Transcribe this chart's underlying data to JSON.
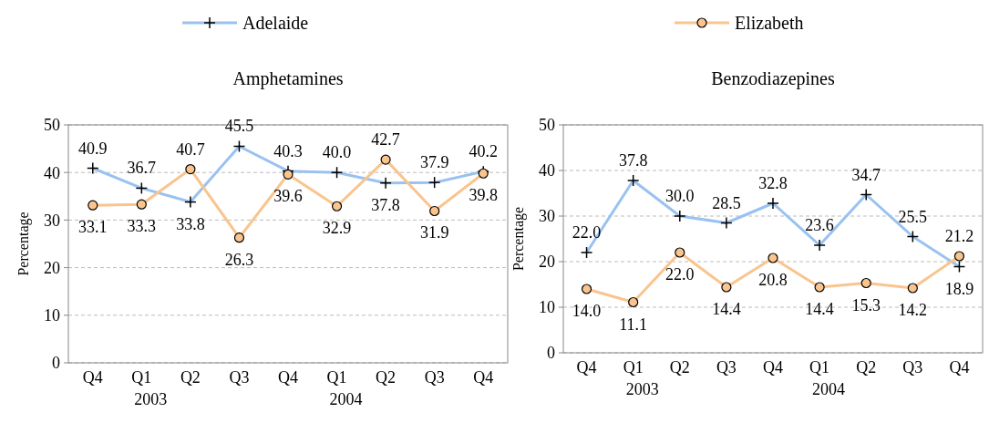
{
  "chart_data": [
    {
      "type": "line",
      "title": "Amphetamines",
      "ylabel": "Percentage",
      "categories": [
        "Q4",
        "Q1\n2003",
        "Q2",
        "Q3",
        "Q4",
        "Q1\n2004",
        "Q2",
        "Q3",
        "Q4"
      ],
      "series": [
        {
          "name": "Adelaide",
          "color": "#99c2f0",
          "marker": "cross",
          "values": [
            40.9,
            36.7,
            33.8,
            45.5,
            40.3,
            40.0,
            37.8,
            37.9,
            40.2
          ],
          "value_labels": [
            "40.9",
            "36.7",
            "33.8",
            "45.5",
            "40.3",
            "40.0",
            "37.8",
            "37.9",
            "40.2"
          ]
        },
        {
          "name": "Elizabeth",
          "color": "#f9c48e",
          "marker": "circle",
          "values": [
            33.1,
            33.3,
            40.7,
            26.3,
            39.6,
            32.9,
            42.7,
            31.9,
            39.8
          ],
          "value_labels": [
            "33.1",
            "33.3",
            "40.7",
            "26.3",
            "39.6",
            "32.9",
            "42.7",
            "31.9",
            "39.8"
          ]
        }
      ],
      "ylim": [
        0,
        50
      ],
      "yticks": [
        0,
        10,
        20,
        30,
        40,
        50
      ],
      "grid": "y",
      "legend": "top"
    },
    {
      "type": "line",
      "title": "Benzodiazepines",
      "ylabel": "Percentage",
      "categories": [
        "Q4",
        "Q1\n2003",
        "Q2",
        "Q3",
        "Q4",
        "Q1\n2004",
        "Q2",
        "Q3",
        "Q4"
      ],
      "series": [
        {
          "color": "#99c2f0",
          "marker": "cross",
          "values": [
            22.0,
            37.8,
            30.0,
            28.5,
            32.8,
            23.6,
            34.7,
            25.5,
            18.9
          ],
          "value_labels": [
            "22.0",
            "37.8",
            "30.0",
            "28.5",
            "32.8",
            "23.6",
            "34.7",
            "25.5",
            "18.9"
          ]
        },
        {
          "color": "#f9c48e",
          "marker": "circle",
          "values": [
            14.0,
            11.1,
            22.0,
            14.4,
            20.8,
            14.4,
            15.3,
            14.2,
            21.2
          ],
          "value_labels": [
            "14.0",
            "11.1",
            "22.0",
            "14.4",
            "20.8",
            "14.4",
            "15.3",
            "14.2",
            "21.2"
          ]
        }
      ],
      "ylim": [
        0,
        50
      ],
      "yticks": [
        0,
        10,
        20,
        30,
        40,
        50
      ],
      "grid": "y"
    }
  ]
}
